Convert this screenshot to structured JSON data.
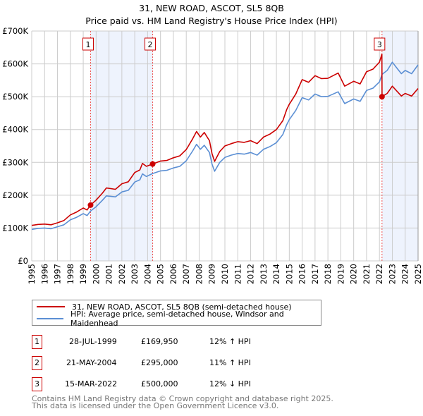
{
  "chart_data": {
    "type": "line",
    "title": "31, NEW ROAD, ASCOT, SL5 8QB",
    "subtitle": "Price paid vs. HM Land Registry's House Price Index (HPI)",
    "xlabel": "",
    "ylabel": "",
    "xlim": [
      1995,
      2025
    ],
    "ylim": [
      0,
      700000
    ],
    "x_ticks": [
      "1995",
      "1996",
      "1997",
      "1998",
      "1999",
      "2000",
      "2001",
      "2002",
      "2003",
      "2004",
      "2005",
      "2006",
      "2007",
      "2008",
      "2009",
      "2010",
      "2011",
      "2012",
      "2013",
      "2014",
      "2015",
      "2016",
      "2017",
      "2018",
      "2019",
      "2020",
      "2021",
      "2022",
      "2023",
      "2024",
      "2025"
    ],
    "y_ticks": [
      {
        "value": 0,
        "label": "£0"
      },
      {
        "value": 100000,
        "label": "£100K"
      },
      {
        "value": 200000,
        "label": "£200K"
      },
      {
        "value": 300000,
        "label": "£300K"
      },
      {
        "value": 400000,
        "label": "£400K"
      },
      {
        "value": 500000,
        "label": "£500K"
      },
      {
        "value": 600000,
        "label": "£600K"
      },
      {
        "value": 700000,
        "label": "£700K"
      }
    ],
    "grid": true,
    "legend_placement": "below",
    "series": [
      {
        "name": "31, NEW ROAD, ASCOT, SL5 8QB (semi-detached house)",
        "color": "#cc0000",
        "unit": "thousand GBP",
        "points": [
          [
            1995.0,
            108
          ],
          [
            1995.5,
            111
          ],
          [
            1996.0,
            112
          ],
          [
            1996.5,
            110
          ],
          [
            1997.0,
            116
          ],
          [
            1997.5,
            123
          ],
          [
            1998.0,
            140
          ],
          [
            1998.5,
            149
          ],
          [
            1999.0,
            161
          ],
          [
            1999.3,
            155
          ],
          [
            1999.57,
            170
          ],
          [
            2000.0,
            185
          ],
          [
            2000.5,
            207
          ],
          [
            2000.8,
            222
          ],
          [
            2001.5,
            218
          ],
          [
            2002.0,
            235
          ],
          [
            2002.5,
            241
          ],
          [
            2003.0,
            269
          ],
          [
            2003.4,
            277
          ],
          [
            2003.6,
            297
          ],
          [
            2003.9,
            288
          ],
          [
            2004.39,
            295
          ],
          [
            2005.0,
            304
          ],
          [
            2005.5,
            306
          ],
          [
            2006.0,
            314
          ],
          [
            2006.5,
            320
          ],
          [
            2007.0,
            339
          ],
          [
            2007.5,
            372
          ],
          [
            2007.8,
            394
          ],
          [
            2008.1,
            377
          ],
          [
            2008.4,
            391
          ],
          [
            2008.8,
            366
          ],
          [
            2009.0,
            327
          ],
          [
            2009.2,
            303
          ],
          [
            2009.6,
            333
          ],
          [
            2010.0,
            350
          ],
          [
            2010.5,
            357
          ],
          [
            2011.0,
            363
          ],
          [
            2011.5,
            361
          ],
          [
            2012.0,
            366
          ],
          [
            2012.5,
            357
          ],
          [
            2013.0,
            377
          ],
          [
            2013.5,
            386
          ],
          [
            2014.0,
            400
          ],
          [
            2014.5,
            427
          ],
          [
            2014.8,
            461
          ],
          [
            2015.0,
            477
          ],
          [
            2015.5,
            508
          ],
          [
            2016.0,
            552
          ],
          [
            2016.5,
            544
          ],
          [
            2017.0,
            564
          ],
          [
            2017.5,
            555
          ],
          [
            2018.0,
            556
          ],
          [
            2018.8,
            572
          ],
          [
            2019.3,
            532
          ],
          [
            2020.0,
            547
          ],
          [
            2020.5,
            539
          ],
          [
            2021.0,
            576
          ],
          [
            2021.5,
            584
          ],
          [
            2022.0,
            605
          ],
          [
            2022.19,
            630
          ],
          [
            2022.2,
            500
          ],
          [
            2022.6,
            510
          ],
          [
            2023.0,
            532
          ],
          [
            2023.4,
            515
          ],
          [
            2023.7,
            502
          ],
          [
            2024.0,
            510
          ],
          [
            2024.5,
            502
          ],
          [
            2025.0,
            525
          ]
        ]
      },
      {
        "name": "HPI: Average price, semi-detached house, Windsor and Maidenhead",
        "color": "#5b8fd4",
        "unit": "thousand GBP",
        "points": [
          [
            1995.0,
            96
          ],
          [
            1995.5,
            99
          ],
          [
            1996.0,
            100
          ],
          [
            1996.5,
            98
          ],
          [
            1997.0,
            104
          ],
          [
            1997.5,
            110
          ],
          [
            1998.0,
            125
          ],
          [
            1998.5,
            133
          ],
          [
            1999.0,
            144
          ],
          [
            1999.3,
            138
          ],
          [
            1999.57,
            152
          ],
          [
            2000.0,
            165
          ],
          [
            2000.5,
            185
          ],
          [
            2000.8,
            198
          ],
          [
            2001.5,
            195
          ],
          [
            2002.0,
            210
          ],
          [
            2002.5,
            215
          ],
          [
            2003.0,
            240
          ],
          [
            2003.4,
            247
          ],
          [
            2003.6,
            265
          ],
          [
            2003.9,
            257
          ],
          [
            2004.39,
            266
          ],
          [
            2005.0,
            274
          ],
          [
            2005.5,
            276
          ],
          [
            2006.0,
            283
          ],
          [
            2006.5,
            288
          ],
          [
            2007.0,
            305
          ],
          [
            2007.5,
            335
          ],
          [
            2007.8,
            355
          ],
          [
            2008.1,
            340
          ],
          [
            2008.4,
            352
          ],
          [
            2008.8,
            330
          ],
          [
            2009.0,
            295
          ],
          [
            2009.2,
            273
          ],
          [
            2009.6,
            300
          ],
          [
            2010.0,
            315
          ],
          [
            2010.5,
            322
          ],
          [
            2011.0,
            327
          ],
          [
            2011.5,
            325
          ],
          [
            2012.0,
            330
          ],
          [
            2012.5,
            322
          ],
          [
            2013.0,
            340
          ],
          [
            2013.5,
            348
          ],
          [
            2014.0,
            360
          ],
          [
            2014.5,
            385
          ],
          [
            2014.8,
            415
          ],
          [
            2015.0,
            430
          ],
          [
            2015.5,
            458
          ],
          [
            2016.0,
            497
          ],
          [
            2016.5,
            490
          ],
          [
            2017.0,
            508
          ],
          [
            2017.5,
            500
          ],
          [
            2018.0,
            501
          ],
          [
            2018.8,
            515
          ],
          [
            2019.3,
            479
          ],
          [
            2020.0,
            493
          ],
          [
            2020.5,
            486
          ],
          [
            2021.0,
            519
          ],
          [
            2021.5,
            526
          ],
          [
            2022.0,
            545
          ],
          [
            2022.2,
            568
          ],
          [
            2022.6,
            580
          ],
          [
            2023.0,
            605
          ],
          [
            2023.4,
            585
          ],
          [
            2023.7,
            570
          ],
          [
            2024.0,
            580
          ],
          [
            2024.5,
            570
          ],
          [
            2025.0,
            597
          ]
        ]
      }
    ],
    "sales": [
      {
        "id": "1",
        "x": 1999.57,
        "value": 169950,
        "date": "28-JUL-1999",
        "price": "£169,950",
        "hpi": "12% ↑ HPI"
      },
      {
        "id": "2",
        "x": 2004.39,
        "value": 295000,
        "date": "21-MAY-2004",
        "price": "£295,000",
        "hpi": "11% ↑ HPI"
      },
      {
        "id": "3",
        "x": 2022.2,
        "value": 500000,
        "date": "15-MAR-2022",
        "price": "£500,000",
        "hpi": "12% ↓ HPI"
      }
    ],
    "shaded_ranges": [
      [
        1999.57,
        2004.39
      ],
      [
        2022.2,
        2025
      ]
    ]
  },
  "footer": {
    "line1": "Contains HM Land Registry data © Crown copyright and database right 2025.",
    "line2": "This data is licensed under the Open Government Licence v3.0."
  }
}
